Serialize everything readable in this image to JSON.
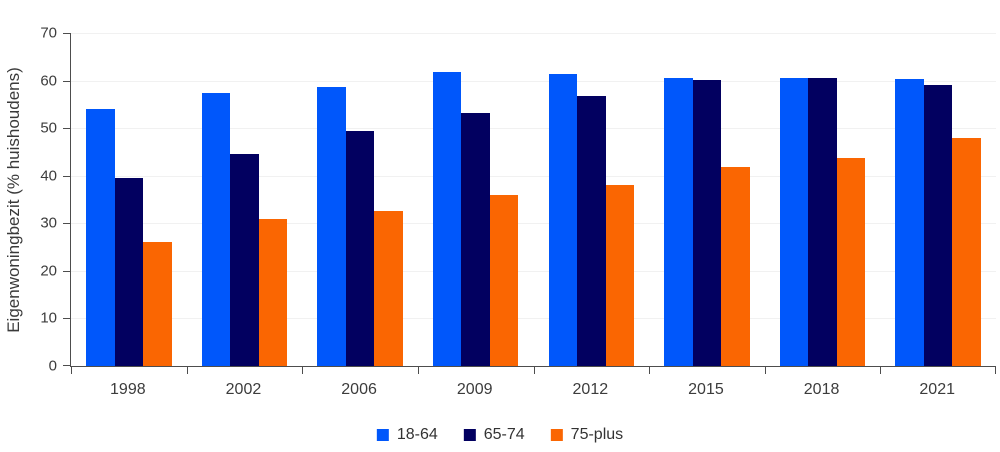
{
  "chart_data": {
    "type": "bar",
    "title": "",
    "xlabel": "",
    "ylabel": "Eigenwoningbezit (% huishoudens)",
    "ylim": [
      0,
      70
    ],
    "yticks": [
      0,
      10,
      20,
      30,
      40,
      50,
      60,
      70
    ],
    "grid": true,
    "legend_position": "bottom",
    "categories": [
      "1998",
      "2002",
      "2006",
      "2009",
      "2012",
      "2015",
      "2018",
      "2021"
    ],
    "series": [
      {
        "name": "18-64",
        "color": "#0057fb",
        "values": [
          54.1,
          57.4,
          58.7,
          61.9,
          61.4,
          60.6,
          60.5,
          60.3
        ]
      },
      {
        "name": "65-74",
        "color": "#020060",
        "values": [
          39.5,
          44.6,
          49.4,
          53.2,
          56.7,
          60.2,
          60.5,
          59.1
        ]
      },
      {
        "name": "75-plus",
        "color": "#fa6602",
        "values": [
          26.1,
          30.8,
          32.6,
          36.0,
          38.0,
          41.8,
          43.8,
          48.0
        ]
      }
    ]
  },
  "colors": {
    "axis": "#4d4d4d",
    "grid": "#f1f1f1",
    "tick_text": "#3c3c3c",
    "legend_text": "#333333",
    "background": "#ffffff"
  }
}
